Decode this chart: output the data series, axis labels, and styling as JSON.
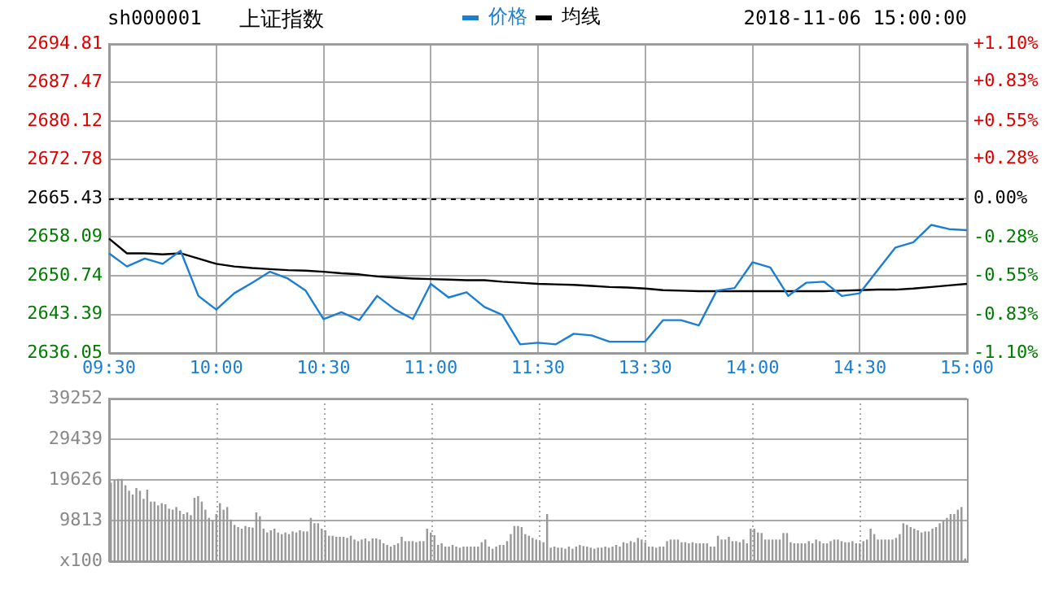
{
  "chart_data": [
    {
      "type": "line",
      "title": "上证指数",
      "subtitle": "sh000001",
      "annotations": [
        "2018-11-06 15:00:00"
      ],
      "categories": [
        "09:30",
        null,
        null,
        null,
        null,
        null,
        "10:00",
        null,
        null,
        null,
        null,
        null,
        "10:30",
        null,
        null,
        null,
        null,
        null,
        "11:00",
        null,
        null,
        null,
        null,
        null,
        "11:30",
        null,
        null,
        null,
        null,
        null,
        "13:30",
        null,
        null,
        null,
        null,
        null,
        "14:00",
        null,
        null,
        null,
        null,
        null,
        "14:30",
        null,
        null,
        null,
        null,
        null,
        "15:00"
      ],
      "series": [
        {
          "name": "价格",
          "color": "#1a7fd4",
          "values": [
            2655.0,
            2652.5,
            2654.0,
            2653.0,
            2655.5,
            2646.9,
            2644.3,
            2647.4,
            2649.4,
            2651.5,
            2650.2,
            2647.9,
            2642.5,
            2643.8,
            2642.3,
            2646.9,
            2644.3,
            2642.5,
            2649.2,
            2646.6,
            2647.6,
            2644.8,
            2643.3,
            2637.7,
            2638.0,
            2637.7,
            2639.7,
            2639.4,
            2638.2,
            2638.2,
            2638.2,
            2642.3,
            2642.3,
            2641.3,
            2647.9,
            2648.4,
            2653.3,
            2652.3,
            2646.9,
            2649.4,
            2649.6,
            2646.9,
            2647.4,
            2651.8,
            2656.1,
            2657.1,
            2660.4,
            2659.6,
            2659.4
          ]
        },
        {
          "name": "均线",
          "color": "#000000",
          "values": [
            2657.8,
            2655.0,
            2655.0,
            2654.8,
            2655.0,
            2654.0,
            2653.0,
            2652.5,
            2652.2,
            2652.0,
            2651.8,
            2651.7,
            2651.5,
            2651.2,
            2651.0,
            2650.6,
            2650.4,
            2650.2,
            2650.1,
            2650.0,
            2649.9,
            2649.9,
            2649.6,
            2649.4,
            2649.2,
            2649.1,
            2649.0,
            2648.8,
            2648.6,
            2648.5,
            2648.3,
            2648.0,
            2647.9,
            2647.8,
            2647.8,
            2647.8,
            2647.8,
            2647.8,
            2647.8,
            2647.8,
            2647.8,
            2647.9,
            2648.0,
            2648.1,
            2648.1,
            2648.3,
            2648.6,
            2648.9,
            2649.2
          ]
        }
      ],
      "ylim": [
        2636.05,
        2694.81
      ],
      "yticks": [
        2636.05,
        2643.39,
        2650.74,
        2658.09,
        2665.43,
        2672.78,
        2680.12,
        2687.47,
        2694.81
      ],
      "y2lim": [
        -1.1,
        1.1
      ],
      "y2ticks": [
        {
          "value": -1.1,
          "label": "-1.10%"
        },
        {
          "value": -0.83,
          "label": "-0.83%"
        },
        {
          "value": -0.55,
          "label": "-0.55%"
        },
        {
          "value": -0.28,
          "label": "-0.28%"
        },
        {
          "value": 0,
          "label": "0.00%"
        },
        {
          "value": 0.28,
          "label": "+0.28%"
        },
        {
          "value": 0.55,
          "label": "+0.55%"
        },
        {
          "value": 0.83,
          "label": "+0.83%"
        },
        {
          "value": 1.1,
          "label": "+1.10%"
        }
      ],
      "ref_lines": [
        {
          "axis": "y",
          "value": 2665.43,
          "color": "#000000",
          "line_style": "dashed"
        }
      ],
      "grid": true,
      "legend": "top",
      "marker": "none",
      "line_style": "solid"
    },
    {
      "type": "bar",
      "color": "#999999",
      "tick_labels": "y",
      "grid": true,
      "categories": [
        null,
        null,
        null,
        null,
        null,
        null,
        null,
        null,
        null,
        null,
        null,
        null,
        null,
        null,
        null,
        null,
        null,
        null,
        null,
        null,
        null,
        null,
        null,
        null,
        null,
        null,
        null,
        null,
        null,
        null,
        null,
        null,
        null,
        null,
        null,
        null,
        null,
        null,
        null,
        null,
        null,
        null,
        null,
        null,
        null,
        null,
        null,
        null,
        null,
        null,
        null,
        null,
        null,
        null,
        null,
        null,
        null,
        null,
        null,
        null,
        null,
        null,
        null,
        null,
        null,
        null,
        null,
        null,
        null,
        null,
        null,
        null,
        null,
        null,
        null,
        null,
        null,
        null,
        null,
        null,
        null,
        null,
        null,
        null,
        null,
        null,
        null,
        null,
        null,
        null,
        null,
        null,
        null,
        null,
        null,
        null,
        null,
        null,
        null,
        null,
        null,
        null,
        null,
        null,
        null,
        null,
        null,
        null,
        null,
        null,
        null,
        null,
        null,
        null,
        null,
        null,
        null,
        null,
        null,
        null,
        null,
        null,
        null,
        null,
        null,
        null,
        null,
        null,
        null,
        null,
        null,
        null,
        null,
        null,
        null,
        null,
        null,
        null,
        null,
        null,
        null,
        null,
        null,
        null,
        null,
        null,
        null,
        null,
        null,
        null,
        null,
        null,
        null,
        null,
        null,
        null,
        null,
        null,
        null,
        null,
        null,
        null,
        null,
        null,
        null,
        null,
        null,
        null,
        null,
        null,
        null,
        null,
        null,
        null,
        null,
        null,
        null,
        null,
        null,
        null,
        null,
        null,
        null,
        null,
        null,
        null,
        null,
        null,
        null,
        null,
        null,
        null,
        null,
        null,
        null,
        null,
        null,
        null,
        null,
        null,
        null,
        null,
        null,
        null,
        null,
        null,
        null,
        null,
        null,
        null,
        null,
        null,
        null,
        null,
        null,
        null,
        null,
        null,
        null,
        null,
        null,
        null,
        null,
        null,
        null,
        null,
        null,
        null,
        null,
        null,
        null,
        null,
        null,
        null,
        null,
        null
      ],
      "values": [
        18970,
        19620,
        19880,
        19880,
        18310,
        17000,
        16090,
        17660,
        17000,
        15040,
        17270,
        14390,
        14390,
        13470,
        14000,
        13730,
        12690,
        12430,
        13080,
        12160,
        11380,
        11770,
        11120,
        15300,
        15700,
        14390,
        12430,
        10460,
        9810,
        11380,
        14000,
        12430,
        13080,
        10070,
        8760,
        8240,
        7850,
        8500,
        8240,
        8110,
        11770,
        10860,
        7850,
        6930,
        7460,
        7850,
        6930,
        6540,
        6930,
        6540,
        7190,
        6930,
        7460,
        7190,
        7190,
        10460,
        9160,
        9160,
        7850,
        7460,
        6150,
        6150,
        5890,
        5890,
        5890,
        5620,
        6150,
        5230,
        4840,
        5230,
        5490,
        4840,
        5490,
        5490,
        5230,
        4320,
        3920,
        3530,
        3920,
        4320,
        5890,
        4840,
        4840,
        4840,
        4580,
        4840,
        4840,
        7850,
        6930,
        6280,
        3920,
        4320,
        3530,
        3530,
        3920,
        3530,
        3270,
        3530,
        3530,
        3530,
        3530,
        3530,
        4580,
        5230,
        3530,
        3010,
        3530,
        3920,
        3920,
        4840,
        6540,
        8500,
        8500,
        8240,
        6540,
        6150,
        5620,
        5230,
        4840,
        4580,
        11380,
        3270,
        3530,
        3270,
        3270,
        3010,
        3530,
        3010,
        3530,
        3920,
        3660,
        3530,
        3270,
        3010,
        3270,
        3270,
        3530,
        3270,
        3530,
        3920,
        3530,
        4580,
        4320,
        4840,
        4580,
        5620,
        5230,
        4580,
        3530,
        3530,
        3270,
        3530,
        3530,
        4840,
        5230,
        5230,
        5230,
        4580,
        4580,
        4320,
        4580,
        4320,
        4320,
        4320,
        4320,
        3530,
        3530,
        6150,
        5230,
        5230,
        5890,
        4840,
        4840,
        4580,
        5230,
        4320,
        7850,
        7850,
        6930,
        6800,
        5230,
        5230,
        5230,
        5230,
        5230,
        6800,
        6800,
        4580,
        4320,
        4320,
        4320,
        4320,
        4840,
        4320,
        5230,
        4840,
        4320,
        4320,
        4840,
        5230,
        5230,
        4840,
        4580,
        4580,
        4840,
        4320,
        4320,
        4840,
        5230,
        7850,
        6540,
        5230,
        5230,
        5230,
        5230,
        5230,
        5620,
        6540,
        9160,
        8760,
        8240,
        7850,
        7460,
        6930,
        7190,
        7190,
        7850,
        8240,
        9160,
        9810,
        10460,
        11380,
        11380,
        12430,
        13080,
        650
      ],
      "ylim": [
        0,
        39252
      ],
      "yticks": [
        {
          "value": 0,
          "label": "x100"
        },
        9813,
        19626,
        29439,
        39252
      ]
    }
  ]
}
